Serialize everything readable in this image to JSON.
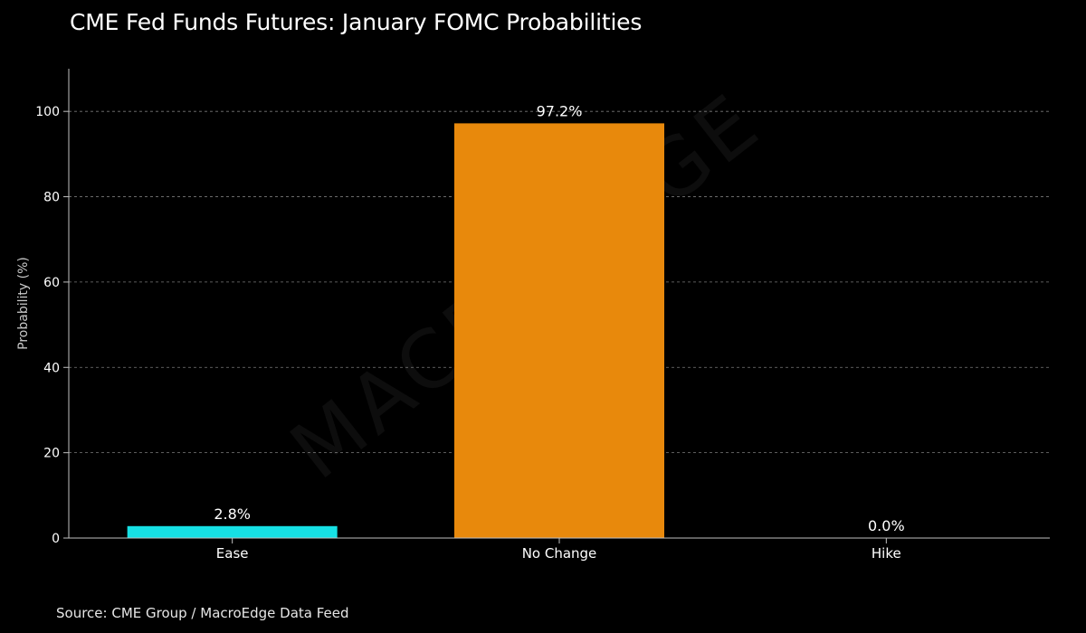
{
  "chart_data": {
    "type": "bar",
    "title": "CME Fed Funds Futures: January FOMC Probabilities",
    "xlabel": "",
    "ylabel": "Probability (%)",
    "categories": [
      "Ease",
      "No Change",
      "Hike"
    ],
    "values": [
      2.8,
      97.2,
      0.0
    ],
    "value_labels": [
      "2.8%",
      "97.2%",
      "0.0%"
    ],
    "colors": [
      "#16e0e4",
      "#e8890c",
      "#e8890c"
    ],
    "ylim": [
      0,
      110
    ],
    "yticks": [
      0,
      20,
      40,
      60,
      80,
      100
    ],
    "grid": true,
    "source": "Source: CME Group / MacroEdge Data Feed",
    "watermark": "MACROEDGE"
  }
}
